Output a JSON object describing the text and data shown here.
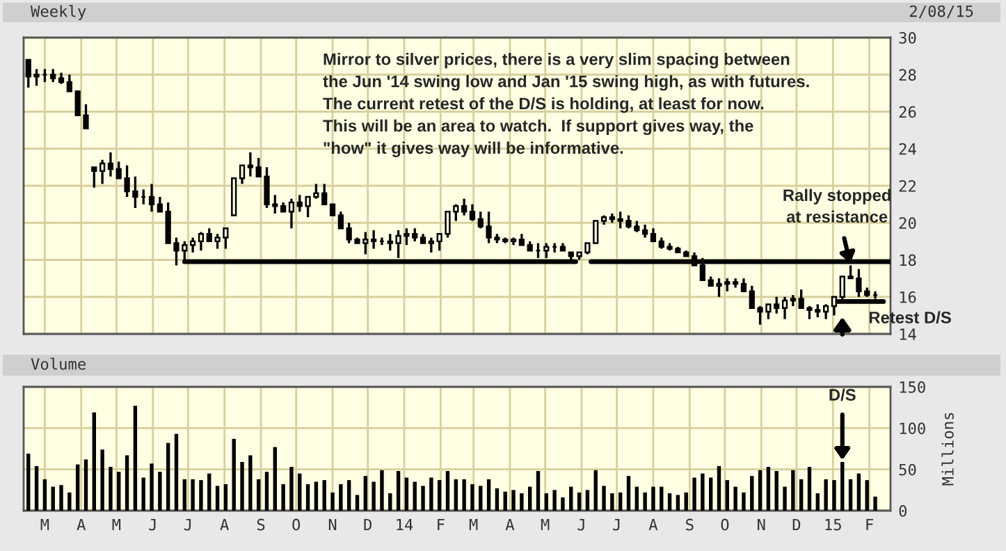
{
  "chart_data": [
    {
      "type": "candlestick",
      "title": "Weekly",
      "subtitle": "2/08/15",
      "color": "#000000",
      "x": [
        "2013-02-15",
        "2013-02-22",
        "2013-03-01",
        "2013-03-08",
        "2013-03-15",
        "2013-03-22",
        "2013-03-29",
        "2013-04-05",
        "2013-04-12",
        "2013-04-19",
        "2013-04-26",
        "2013-05-03",
        "2013-05-10",
        "2013-05-17",
        "2013-05-24",
        "2013-05-31",
        "2013-06-07",
        "2013-06-14",
        "2013-06-21",
        "2013-06-28",
        "2013-07-05",
        "2013-07-12",
        "2013-07-19",
        "2013-07-26",
        "2013-08-02",
        "2013-08-09",
        "2013-08-16",
        "2013-08-23",
        "2013-08-30",
        "2013-09-06",
        "2013-09-13",
        "2013-09-20",
        "2013-09-27",
        "2013-10-04",
        "2013-10-11",
        "2013-10-18",
        "2013-10-25",
        "2013-11-01",
        "2013-11-08",
        "2013-11-15",
        "2013-11-22",
        "2013-11-29",
        "2013-12-06",
        "2013-12-13",
        "2013-12-20",
        "2013-12-27",
        "2014-01-03",
        "2014-01-10",
        "2014-01-17",
        "2014-01-24",
        "2014-01-31",
        "2014-02-07",
        "2014-02-14",
        "2014-02-21",
        "2014-02-28",
        "2014-03-07",
        "2014-03-14",
        "2014-03-21",
        "2014-03-28",
        "2014-04-04",
        "2014-04-11",
        "2014-04-18",
        "2014-04-25",
        "2014-05-02",
        "2014-05-09",
        "2014-05-16",
        "2014-05-23",
        "2014-05-30",
        "2014-06-06",
        "2014-06-13",
        "2014-06-20",
        "2014-06-27",
        "2014-07-04",
        "2014-07-11",
        "2014-07-18",
        "2014-07-25",
        "2014-08-01",
        "2014-08-08",
        "2014-08-15",
        "2014-08-22",
        "2014-08-29",
        "2014-09-05",
        "2014-09-12",
        "2014-09-19",
        "2014-09-26",
        "2014-10-03",
        "2014-10-10",
        "2014-10-17",
        "2014-10-24",
        "2014-10-31",
        "2014-11-07",
        "2014-11-14",
        "2014-11-21",
        "2014-11-28",
        "2014-12-05",
        "2014-12-12",
        "2014-12-19",
        "2014-12-26",
        "2015-01-02",
        "2015-01-09",
        "2015-01-16",
        "2015-01-23",
        "2015-01-30",
        "2015-02-06"
      ],
      "ohlc": [
        [
          28.8,
          28.8,
          27.3,
          27.9
        ],
        [
          27.9,
          28.3,
          27.4,
          28.0
        ],
        [
          28.0,
          28.3,
          27.6,
          28.0
        ],
        [
          28.0,
          28.3,
          27.6,
          27.8
        ],
        [
          27.8,
          28.1,
          27.5,
          27.6
        ],
        [
          27.6,
          28.0,
          27.1,
          27.1
        ],
        [
          27.1,
          27.1,
          25.8,
          25.8
        ],
        [
          25.8,
          26.4,
          25.1,
          25.1
        ],
        [
          23.0,
          23.0,
          21.9,
          22.8
        ],
        [
          22.8,
          23.4,
          22.1,
          23.2
        ],
        [
          23.2,
          23.8,
          22.5,
          22.9
        ],
        [
          22.9,
          23.3,
          22.4,
          22.4
        ],
        [
          22.4,
          23.1,
          21.4,
          21.7
        ],
        [
          21.7,
          22.5,
          20.8,
          21.4
        ],
        [
          21.4,
          21.8,
          21.0,
          21.4
        ],
        [
          21.4,
          22.1,
          20.6,
          21.0
        ],
        [
          21.0,
          21.4,
          20.6,
          20.6
        ],
        [
          20.6,
          21.1,
          18.9,
          18.9
        ],
        [
          18.9,
          19.2,
          17.7,
          18.5
        ],
        [
          18.5,
          19.0,
          18.0,
          18.8
        ],
        [
          18.8,
          19.2,
          18.4,
          19.0
        ],
        [
          19.0,
          19.5,
          18.5,
          19.4
        ],
        [
          19.4,
          19.7,
          19.0,
          19.0
        ],
        [
          19.0,
          19.4,
          18.6,
          19.2
        ],
        [
          19.2,
          19.7,
          18.6,
          19.7
        ],
        [
          20.4,
          22.4,
          20.4,
          22.4
        ],
        [
          22.4,
          23.1,
          22.1,
          23.1
        ],
        [
          23.1,
          23.8,
          22.5,
          23.0
        ],
        [
          23.0,
          23.5,
          22.5,
          22.5
        ],
        [
          22.5,
          23.0,
          20.8,
          21.0
        ],
        [
          21.0,
          21.5,
          20.5,
          20.9
        ],
        [
          20.9,
          21.1,
          20.6,
          20.6
        ],
        [
          20.6,
          21.3,
          19.7,
          21.1
        ],
        [
          21.1,
          21.5,
          20.6,
          20.9
        ],
        [
          20.9,
          21.4,
          20.3,
          21.4
        ],
        [
          21.4,
          22.1,
          21.3,
          21.6
        ],
        [
          21.6,
          22.1,
          21.0,
          21.0
        ],
        [
          21.0,
          21.0,
          20.4,
          20.4
        ],
        [
          20.4,
          20.6,
          19.7,
          19.7
        ],
        [
          19.7,
          20.0,
          18.9,
          19.1
        ],
        [
          19.1,
          19.2,
          18.9,
          18.9
        ],
        [
          18.9,
          19.5,
          18.3,
          19.1
        ],
        [
          19.1,
          19.6,
          18.6,
          19.0
        ],
        [
          19.0,
          19.2,
          18.8,
          19.0
        ],
        [
          19.0,
          19.4,
          18.5,
          18.9
        ],
        [
          18.9,
          19.6,
          18.1,
          19.3
        ],
        [
          19.3,
          19.7,
          18.8,
          19.4
        ],
        [
          19.4,
          19.7,
          19.0,
          19.2
        ],
        [
          19.2,
          19.4,
          18.9,
          18.9
        ],
        [
          18.9,
          19.2,
          18.4,
          19.0
        ],
        [
          19.0,
          19.4,
          18.5,
          19.4
        ],
        [
          19.4,
          20.6,
          19.2,
          20.6
        ],
        [
          20.6,
          21.0,
          20.1,
          20.9
        ],
        [
          20.9,
          21.3,
          20.4,
          20.6
        ],
        [
          20.6,
          21.0,
          20.1,
          20.2
        ],
        [
          20.2,
          20.6,
          19.7,
          19.8
        ],
        [
          19.8,
          20.6,
          18.9,
          19.2
        ],
        [
          19.2,
          19.4,
          18.9,
          19.1
        ],
        [
          19.1,
          19.2,
          18.9,
          19.0
        ],
        [
          19.0,
          19.2,
          18.8,
          19.1
        ],
        [
          19.1,
          19.4,
          18.8,
          18.8
        ],
        [
          18.8,
          19.0,
          18.5,
          18.5
        ],
        [
          18.5,
          18.9,
          18.1,
          18.5
        ],
        [
          18.5,
          18.9,
          18.1,
          18.7
        ],
        [
          18.7,
          18.9,
          18.4,
          18.7
        ],
        [
          18.7,
          18.9,
          18.5,
          18.5
        ],
        [
          18.4,
          18.4,
          17.9,
          18.2
        ],
        [
          18.2,
          18.4,
          18.0,
          18.4
        ],
        [
          18.4,
          18.9,
          18.3,
          18.9
        ],
        [
          18.9,
          20.1,
          18.9,
          20.1
        ],
        [
          20.1,
          20.4,
          19.9,
          20.3
        ],
        [
          20.3,
          20.5,
          20.0,
          20.2
        ],
        [
          20.2,
          20.6,
          19.7,
          20.1
        ],
        [
          20.1,
          20.4,
          19.7,
          19.8
        ],
        [
          19.8,
          20.1,
          19.5,
          19.6
        ],
        [
          19.6,
          19.9,
          19.2,
          19.4
        ],
        [
          19.4,
          19.7,
          19.0,
          19.0
        ],
        [
          19.0,
          19.2,
          18.6,
          18.7
        ],
        [
          18.7,
          18.9,
          18.5,
          18.6
        ],
        [
          18.6,
          18.7,
          18.4,
          18.4
        ],
        [
          18.4,
          18.5,
          18.2,
          18.2
        ],
        [
          18.2,
          18.4,
          17.7,
          17.7
        ],
        [
          17.7,
          18.1,
          16.9,
          16.9
        ],
        [
          16.9,
          17.1,
          16.6,
          16.6
        ],
        [
          16.6,
          17.0,
          16.0,
          16.7
        ],
        [
          16.7,
          17.0,
          16.3,
          16.8
        ],
        [
          16.8,
          17.0,
          16.5,
          16.7
        ],
        [
          16.7,
          17.0,
          16.3,
          16.3
        ],
        [
          16.3,
          16.6,
          15.4,
          15.4
        ],
        [
          15.4,
          15.5,
          14.5,
          15.2
        ],
        [
          15.2,
          15.6,
          14.8,
          15.6
        ],
        [
          15.6,
          16.0,
          15.1,
          15.4
        ],
        [
          15.4,
          16.0,
          14.8,
          15.8
        ],
        [
          15.8,
          16.1,
          15.5,
          15.9
        ],
        [
          15.9,
          16.4,
          15.4,
          15.4
        ],
        [
          15.4,
          15.5,
          14.8,
          15.3
        ],
        [
          15.3,
          15.6,
          14.9,
          15.2
        ],
        [
          15.2,
          15.6,
          14.8,
          15.5
        ],
        [
          15.5,
          16.0,
          15.0,
          16.0
        ],
        [
          16.0,
          17.1,
          15.7,
          17.1
        ],
        [
          17.1,
          17.7,
          17.0,
          17.0
        ],
        [
          17.0,
          17.5,
          16.0,
          16.3
        ],
        [
          16.3,
          16.5,
          16.0,
          16.1
        ],
        [
          16.1,
          16.3,
          15.9,
          16.1
        ]
      ],
      "series": [
        {
          "type": "line",
          "color": "#000000",
          "x": [
            "2013-06-28",
            "2014-05-27"
          ],
          "values": [
            17.9,
            17.9
          ]
        },
        {
          "type": "line",
          "color": "#000000",
          "x": [
            "2014-06-09",
            "2015-02-19"
          ],
          "values": [
            17.9,
            17.9
          ]
        },
        {
          "type": "line",
          "color": "#000000",
          "x": [
            "2015-01-05",
            "2015-02-13"
          ],
          "values": [
            15.75,
            15.75
          ]
        }
      ],
      "xlim": [
        "2013-02-11",
        "2015-02-19"
      ],
      "xticks": [
        {
          "value": "2013-03-01",
          "label": null
        },
        {
          "value": "2013-04-01",
          "label": null
        },
        {
          "value": "2013-05-01",
          "label": null
        },
        {
          "value": "2013-06-01",
          "label": null
        },
        {
          "value": "2013-07-01",
          "label": null
        },
        {
          "value": "2013-08-01",
          "label": null
        },
        {
          "value": "2013-09-01",
          "label": null
        },
        {
          "value": "2013-10-01",
          "label": null
        },
        {
          "value": "2013-11-01",
          "label": null
        },
        {
          "value": "2013-12-01",
          "label": null
        },
        {
          "value": "2014-01-01",
          "label": null
        },
        {
          "value": "2014-02-01",
          "label": null
        },
        {
          "value": "2014-03-01",
          "label": null
        },
        {
          "value": "2014-04-01",
          "label": null
        },
        {
          "value": "2014-05-01",
          "label": null
        },
        {
          "value": "2014-06-01",
          "label": null
        },
        {
          "value": "2014-07-01",
          "label": null
        },
        {
          "value": "2014-08-01",
          "label": null
        },
        {
          "value": "2014-09-01",
          "label": null
        },
        {
          "value": "2014-10-01",
          "label": null
        },
        {
          "value": "2014-11-01",
          "label": null
        },
        {
          "value": "2014-12-01",
          "label": null
        },
        {
          "value": "2015-01-01",
          "label": null
        },
        {
          "value": "2015-02-01",
          "label": null
        }
      ],
      "ylim": [
        14,
        30
      ],
      "yticks": [
        14,
        16,
        18,
        20,
        22,
        24,
        26,
        28,
        30
      ],
      "grid": true,
      "tick_labels": "y",
      "annotations": [
        "Mirror to silver prices, there is a very slim spacing between\nthe Jun '14 swing low and Jan '15 swing high, as with futures.\nThe current retest of the D/S is holding, at least for now.\nThis will be an area to watch.  If support gives way, the\n\"how\" it gives way will be informative.",
        {
          "text": "Rally stopped\nat resistance",
          "x": "2015-01-16",
          "y": 17.7
        },
        {
          "text": "Retest D/S",
          "x": "2015-02-06",
          "y": 15.75
        }
      ]
    },
    {
      "type": "bar",
      "title": "Volume",
      "color": "#000000",
      "ylabel": "Millions",
      "x": [
        "2013-02-15",
        "2013-02-22",
        "2013-03-01",
        "2013-03-08",
        "2013-03-15",
        "2013-03-22",
        "2013-03-29",
        "2013-04-05",
        "2013-04-12",
        "2013-04-19",
        "2013-04-26",
        "2013-05-03",
        "2013-05-10",
        "2013-05-17",
        "2013-05-24",
        "2013-05-31",
        "2013-06-07",
        "2013-06-14",
        "2013-06-21",
        "2013-06-28",
        "2013-07-05",
        "2013-07-12",
        "2013-07-19",
        "2013-07-26",
        "2013-08-02",
        "2013-08-09",
        "2013-08-16",
        "2013-08-23",
        "2013-08-30",
        "2013-09-06",
        "2013-09-13",
        "2013-09-20",
        "2013-09-27",
        "2013-10-04",
        "2013-10-11",
        "2013-10-18",
        "2013-10-25",
        "2013-11-01",
        "2013-11-08",
        "2013-11-15",
        "2013-11-22",
        "2013-11-29",
        "2013-12-06",
        "2013-12-13",
        "2013-12-20",
        "2013-12-27",
        "2014-01-03",
        "2014-01-10",
        "2014-01-17",
        "2014-01-24",
        "2014-01-31",
        "2014-02-07",
        "2014-02-14",
        "2014-02-21",
        "2014-02-28",
        "2014-03-07",
        "2014-03-14",
        "2014-03-21",
        "2014-03-28",
        "2014-04-04",
        "2014-04-11",
        "2014-04-18",
        "2014-04-25",
        "2014-05-02",
        "2014-05-09",
        "2014-05-16",
        "2014-05-23",
        "2014-05-30",
        "2014-06-06",
        "2014-06-13",
        "2014-06-20",
        "2014-06-27",
        "2014-07-04",
        "2014-07-11",
        "2014-07-18",
        "2014-07-25",
        "2014-08-01",
        "2014-08-08",
        "2014-08-15",
        "2014-08-22",
        "2014-08-29",
        "2014-09-05",
        "2014-09-12",
        "2014-09-19",
        "2014-09-26",
        "2014-10-03",
        "2014-10-10",
        "2014-10-17",
        "2014-10-24",
        "2014-10-31",
        "2014-11-07",
        "2014-11-14",
        "2014-11-21",
        "2014-11-28",
        "2014-12-05",
        "2014-12-12",
        "2014-12-19",
        "2014-12-26",
        "2015-01-02",
        "2015-01-09",
        "2015-01-16",
        "2015-01-23",
        "2015-01-30",
        "2015-02-06"
      ],
      "values": [
        69,
        54,
        38,
        29,
        31,
        22,
        56,
        62,
        119,
        74,
        53,
        47,
        67,
        127,
        40,
        57,
        47,
        82,
        93,
        38,
        38,
        37,
        45,
        30,
        32,
        87,
        59,
        67,
        38,
        47,
        77,
        32,
        53,
        45,
        32,
        35,
        37,
        22,
        32,
        37,
        19,
        42,
        35,
        49,
        21,
        48,
        40,
        35,
        30,
        40,
        37,
        48,
        38,
        38,
        32,
        30,
        38,
        27,
        23,
        25,
        21,
        29,
        48,
        21,
        25,
        16,
        29,
        22,
        25,
        49,
        30,
        21,
        22,
        42,
        29,
        22,
        29,
        29,
        21,
        19,
        22,
        40,
        45,
        40,
        54,
        37,
        29,
        22,
        42,
        49,
        53,
        48,
        29,
        49,
        38,
        53,
        21,
        38,
        37,
        59,
        38,
        45,
        37,
        17
      ],
      "xlim": [
        "2013-02-11",
        "2015-02-19"
      ],
      "xticks": [
        {
          "value": "2013-03-01",
          "label": "M"
        },
        {
          "value": "2013-04-01",
          "label": "A"
        },
        {
          "value": "2013-05-01",
          "label": "M"
        },
        {
          "value": "2013-06-01",
          "label": "J"
        },
        {
          "value": "2013-07-01",
          "label": "J"
        },
        {
          "value": "2013-08-01",
          "label": "A"
        },
        {
          "value": "2013-09-01",
          "label": "S"
        },
        {
          "value": "2013-10-01",
          "label": "O"
        },
        {
          "value": "2013-11-01",
          "label": "N"
        },
        {
          "value": "2013-12-01",
          "label": "D"
        },
        {
          "value": "2014-01-01",
          "label": "14"
        },
        {
          "value": "2014-02-01",
          "label": "F"
        },
        {
          "value": "2014-03-01",
          "label": "M"
        },
        {
          "value": "2014-04-01",
          "label": "A"
        },
        {
          "value": "2014-05-01",
          "label": "M"
        },
        {
          "value": "2014-06-01",
          "label": "J"
        },
        {
          "value": "2014-07-01",
          "label": "J"
        },
        {
          "value": "2014-08-01",
          "label": "A"
        },
        {
          "value": "2014-09-01",
          "label": "S"
        },
        {
          "value": "2014-10-01",
          "label": "O"
        },
        {
          "value": "2014-11-01",
          "label": "N"
        },
        {
          "value": "2014-12-01",
          "label": "D"
        },
        {
          "value": "2015-01-01",
          "label": "15"
        },
        {
          "value": "2015-02-01",
          "label": "F"
        }
      ],
      "ylim": [
        0,
        150
      ],
      "yticks": [
        0,
        50,
        100,
        150
      ],
      "grid": true,
      "annotations": [
        {
          "text": "D/S",
          "x": "2015-01-09",
          "y": 59
        }
      ]
    }
  ]
}
